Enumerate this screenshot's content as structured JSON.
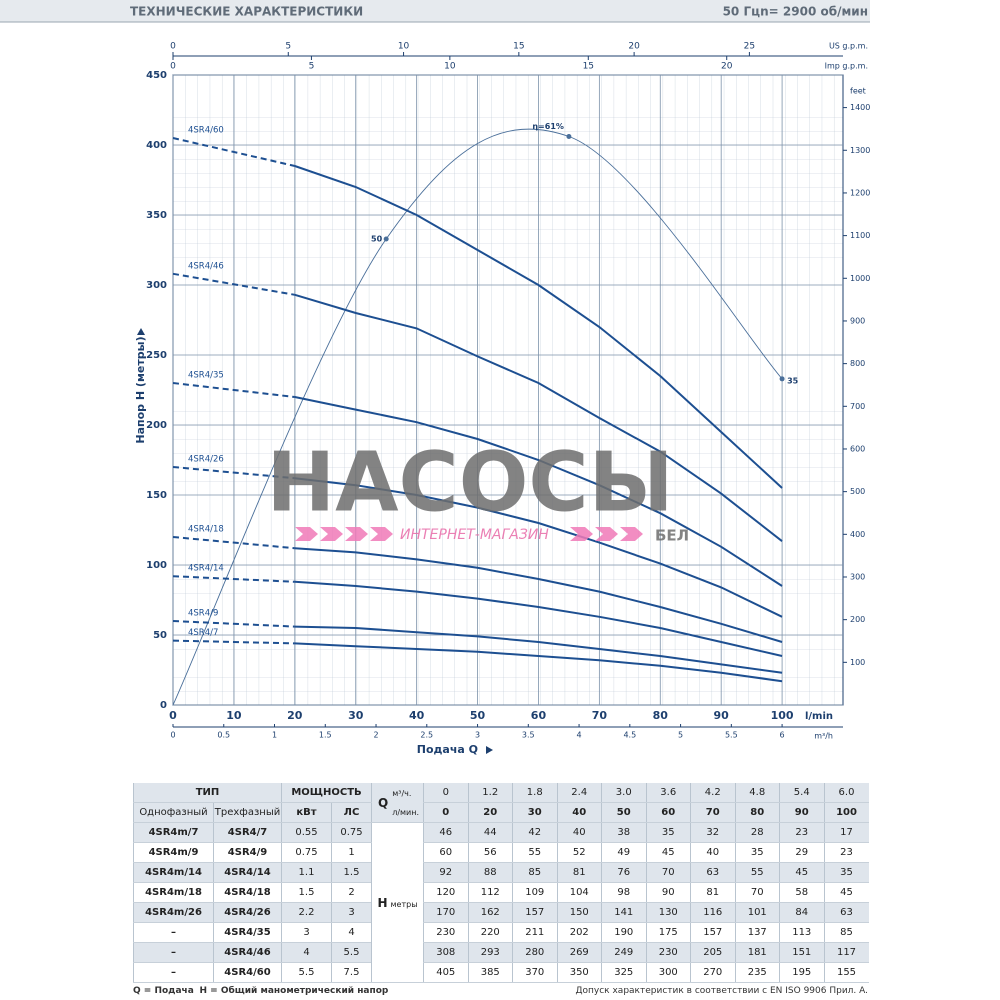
{
  "header": {
    "title": "ТЕХНИЧЕСКИЕ ХАРАКТЕРИСТИКИ",
    "frequency": "50 Гц",
    "speed": "n= 2900 об/мин"
  },
  "chart_data": {
    "type": "line",
    "y_label": "Напор H (метры)",
    "x_label": "Подача Q",
    "x_unit": "l/min",
    "xlim": [
      0,
      110
    ],
    "xticks": [
      0,
      10,
      20,
      30,
      40,
      50,
      60,
      70,
      80,
      90,
      100
    ],
    "ylim": [
      0,
      450
    ],
    "yticks": [
      0,
      50,
      100,
      150,
      200,
      250,
      300,
      350,
      400,
      450
    ],
    "grid": true,
    "x": [
      0,
      20,
      30,
      40,
      50,
      60,
      70,
      80,
      90,
      100
    ],
    "series": [
      {
        "name": "4SR4/7",
        "color": "#1d4f91",
        "values": [
          46,
          44,
          42,
          40,
          38,
          35,
          32,
          28,
          23,
          17
        ]
      },
      {
        "name": "4SR4/9",
        "color": "#1d4f91",
        "values": [
          60,
          56,
          55,
          52,
          49,
          45,
          40,
          35,
          29,
          23
        ]
      },
      {
        "name": "4SR4/14",
        "color": "#1d4f91",
        "values": [
          92,
          88,
          85,
          81,
          76,
          70,
          63,
          55,
          45,
          35
        ]
      },
      {
        "name": "4SR4/18",
        "color": "#1d4f91",
        "values": [
          120,
          112,
          109,
          104,
          98,
          90,
          81,
          70,
          58,
          45
        ]
      },
      {
        "name": "4SR4/26",
        "color": "#1d4f91",
        "values": [
          170,
          162,
          157,
          150,
          141,
          130,
          116,
          101,
          84,
          63
        ]
      },
      {
        "name": "4SR4/35",
        "color": "#1d4f91",
        "values": [
          230,
          220,
          211,
          202,
          190,
          175,
          157,
          137,
          113,
          85
        ]
      },
      {
        "name": "4SR4/46",
        "color": "#1d4f91",
        "values": [
          308,
          293,
          280,
          269,
          249,
          230,
          205,
          181,
          151,
          117
        ]
      },
      {
        "name": "4SR4/60",
        "color": "#1d4f91",
        "values": [
          405,
          385,
          370,
          350,
          325,
          300,
          270,
          235,
          195,
          155
        ]
      }
    ],
    "efficiency": {
      "x": [
        0,
        35,
        65,
        100
      ],
      "values": [
        0,
        50,
        61,
        35
      ],
      "value_labels": [
        null,
        "50",
        "η=61%",
        "35"
      ],
      "color": "#4a6f9a",
      "lim": [
        0,
        67.6
      ]
    },
    "m3h_axis": {
      "label": "m³/h",
      "lim": [
        0,
        6.6
      ],
      "ticks": [
        0,
        0.5,
        1,
        1.5,
        2,
        2.5,
        3,
        3.5,
        4,
        4.5,
        5,
        5.5,
        6
      ]
    },
    "us_gpm_axis": {
      "label": "US g.p.m.",
      "lim": [
        0,
        29.06
      ],
      "ticks": [
        0,
        5,
        10,
        15,
        20,
        25
      ]
    },
    "imp_gpm_axis": {
      "label": "Imp g.p.m.",
      "lim": [
        0,
        24.2
      ],
      "ticks": [
        0,
        5,
        10,
        15,
        20
      ]
    },
    "feet_axis": {
      "label": "feet",
      "lim": [
        0,
        1476.4
      ],
      "ticks": [
        100,
        200,
        300,
        400,
        500,
        600,
        700,
        800,
        900,
        1000,
        1100,
        1200,
        1300,
        1400
      ]
    }
  },
  "watermark": {
    "brand": "НАСОСЫ",
    "tagline": "ИНТЕРНЕТ-МАГАЗИН",
    "suffix": "БЕЛ"
  },
  "table": {
    "type": "ТИП",
    "power": "МОЩНОСТЬ",
    "single": "Однофазный",
    "three": "Трехфазный",
    "kw": "кВт",
    "hp": "ЛС",
    "q": "Q",
    "q_m3h_unit": "м³/ч.",
    "q_lmin_unit": "л/мин.",
    "h": "H",
    "h_unit": "метры",
    "q_m3h": [
      "0",
      "1.2",
      "1.8",
      "2.4",
      "3.0",
      "3.6",
      "4.2",
      "4.8",
      "5.4",
      "6.0"
    ],
    "rows": [
      [
        "4SR4m/7",
        "0.55",
        "0.75"
      ],
      [
        "4SR4m/9",
        "0.75",
        "1"
      ],
      [
        "4SR4m/14",
        "1.1",
        "1.5"
      ],
      [
        "4SR4m/18",
        "1.5",
        "2"
      ],
      [
        "4SR4m/26",
        "2.2",
        "3"
      ],
      [
        "–",
        "3",
        "4"
      ],
      [
        "–",
        "4",
        "5.5"
      ],
      [
        "–",
        "5.5",
        "7.5"
      ]
    ]
  },
  "footer": {
    "q_note": "Q = Подача",
    "h_note": "H = Общий манометрический напор",
    "tolerance": "Допуск характеристик в соответствии с EN ISO 9906 Прил. A."
  }
}
